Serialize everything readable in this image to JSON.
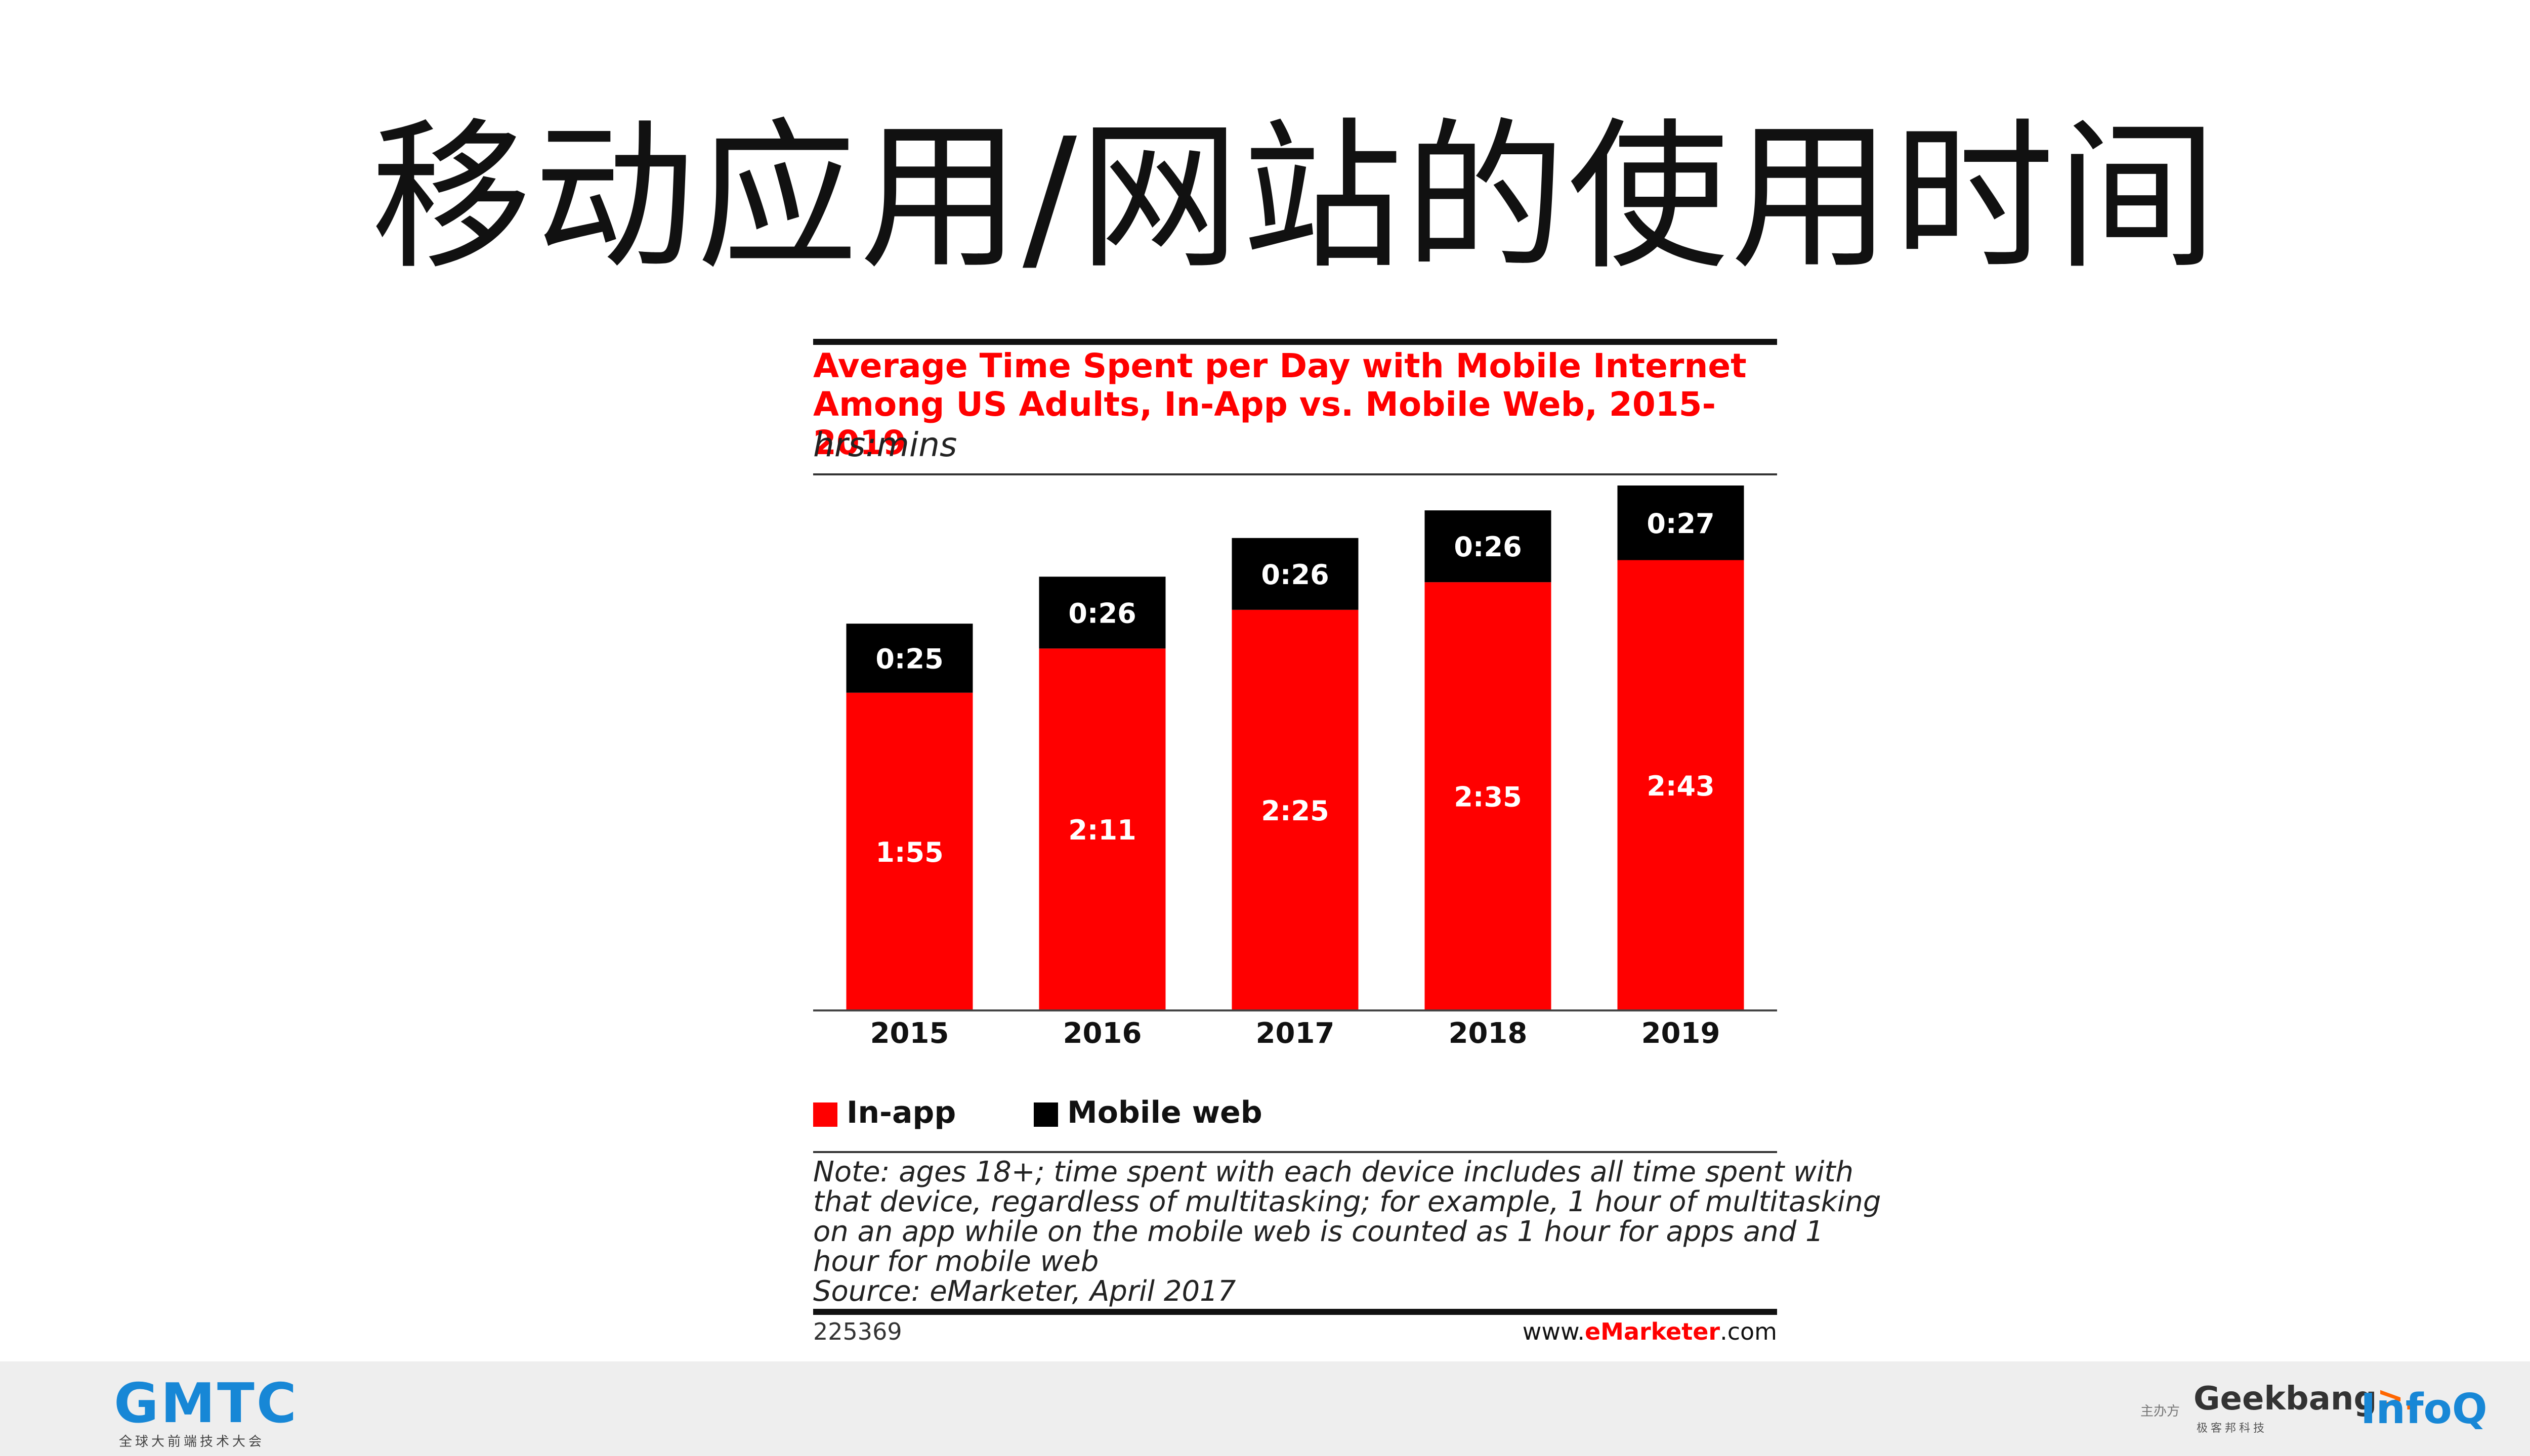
{
  "slide": {
    "title": "移动应用/网站的使用时间"
  },
  "chart_data": {
    "type": "bar",
    "stacked": true,
    "title_line1": "Average Time Spent per Day with Mobile Internet",
    "title_line2": "Among US Adults, In-App vs. Mobile Web, 2015-2019",
    "subtitle": "hrs:mins",
    "categories": [
      "2015",
      "2016",
      "2017",
      "2018",
      "2019"
    ],
    "series": [
      {
        "name": "In-app",
        "color": "#ff0000",
        "label_color": "#ffffff",
        "values_minutes": [
          115,
          131,
          145,
          155,
          163
        ],
        "labels": [
          "1:55",
          "2:11",
          "2:25",
          "2:35",
          "2:43"
        ]
      },
      {
        "name": "Mobile web",
        "color": "#000000",
        "label_color": "#ffffff",
        "values_minutes": [
          25,
          26,
          26,
          26,
          27
        ],
        "labels": [
          "0:25",
          "0:26",
          "0:26",
          "0:26",
          "0:27"
        ]
      }
    ],
    "ylim_minutes": [
      0,
      190
    ],
    "grid": false,
    "legend_position": "bottom-left",
    "note_lines": [
      "Note: ages 18+; time spent with each device includes all time spent with",
      "that device, regardless of multitasking; for example, 1 hour of multitasking",
      "on an app while on the mobile web is counted as 1 hour for apps and 1",
      "hour for mobile web",
      "Source: eMarketer, April 2017"
    ],
    "chart_id": "225369",
    "site": {
      "prefix": "www.",
      "brand": "eMarketer",
      "suffix": ".com"
    }
  },
  "footer": {
    "gmtc_logo": "GMTC",
    "gmtc_tagline": "全球大前端技术大会",
    "sponsor_label": "主办方",
    "geekbang_word": "Geekbang",
    "geekbang_arrow": ">.",
    "geekbang_sub": "极客邦科技",
    "infoq": "InfoQ"
  }
}
